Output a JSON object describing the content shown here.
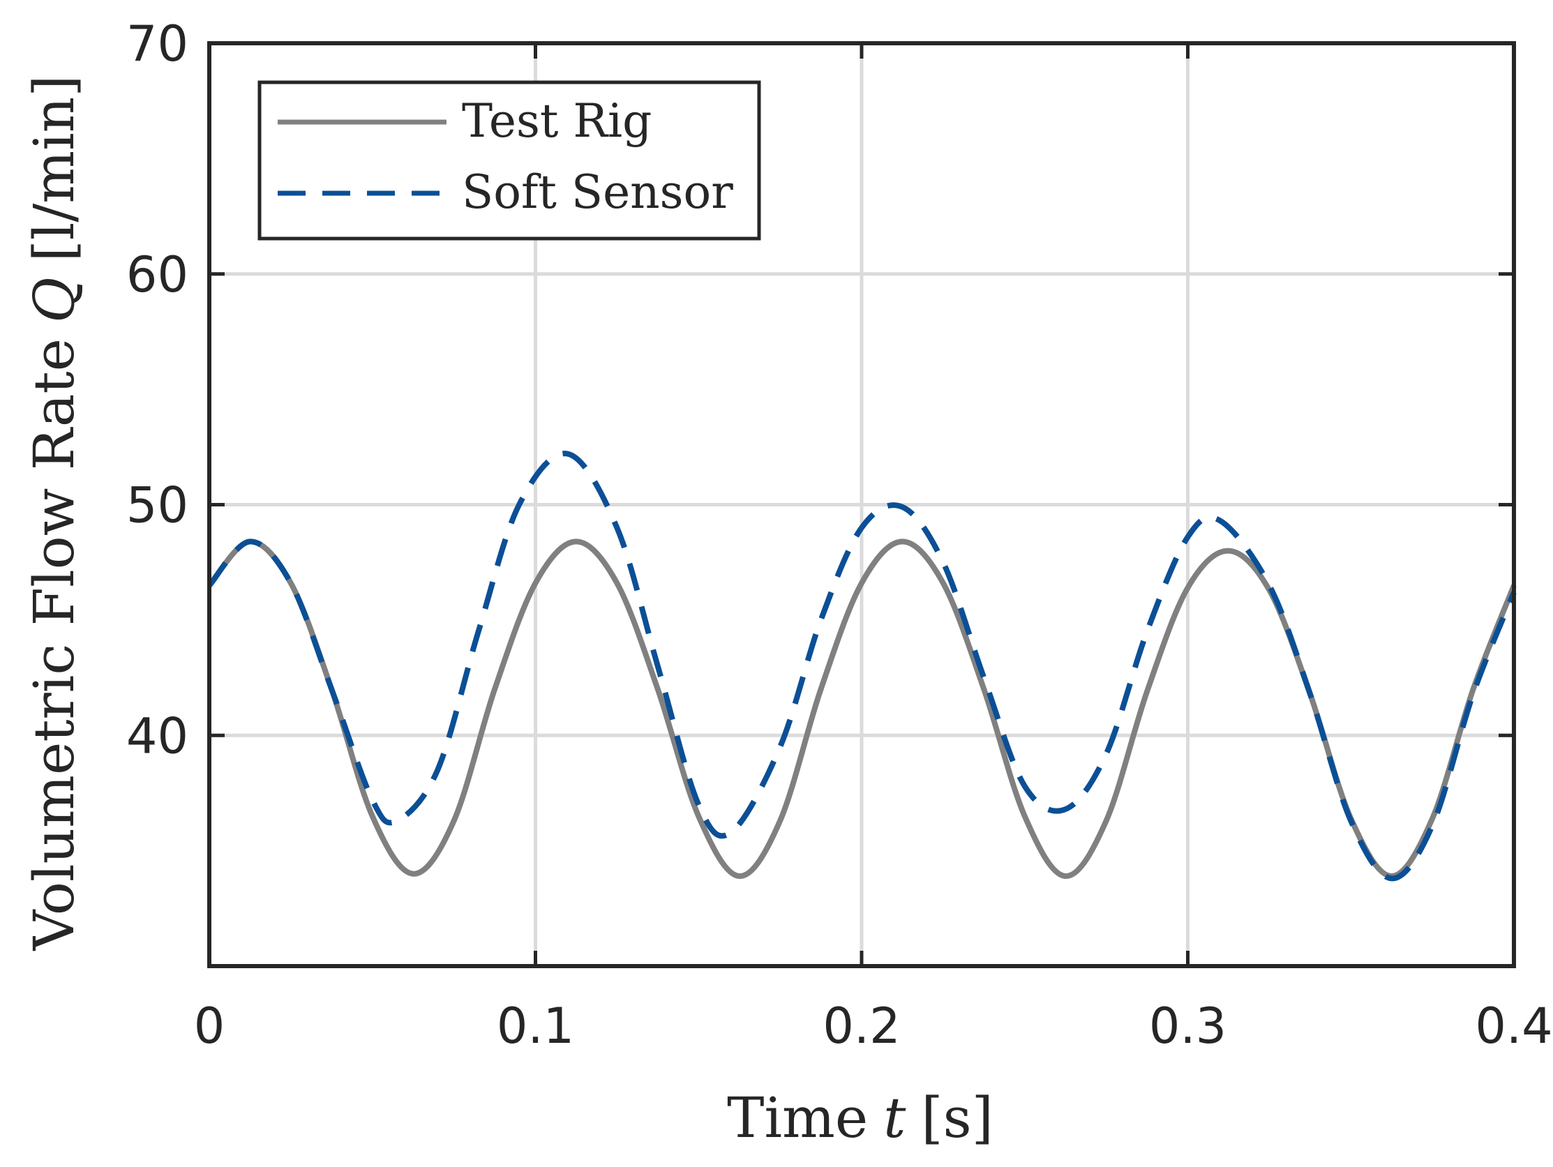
{
  "chart_data": {
    "type": "line",
    "xlabel_prefix": "Time",
    "xlabel_var": "t",
    "xlabel_unit": "[s]",
    "ylabel_prefix": "Volumetric Flow Rate",
    "ylabel_var": "Q",
    "ylabel_unit": "[l/min]",
    "xlim": [
      0,
      0.4
    ],
    "ylim": [
      30,
      70
    ],
    "xticks": [
      0,
      0.1,
      0.2,
      0.3,
      0.4
    ],
    "xtick_labels": [
      "0",
      "0.1",
      "0.2",
      "0.3",
      "0.4"
    ],
    "yticks": [
      40,
      50,
      60,
      70
    ],
    "ytick_labels": [
      "40",
      "50",
      "60",
      "70"
    ],
    "grid": true,
    "legend_position": "top-left",
    "series": [
      {
        "name": "Test Rig",
        "style": "solid",
        "color": "#808080",
        "x": [
          0,
          0.0125,
          0.025,
          0.0375,
          0.05,
          0.0625,
          0.075,
          0.0875,
          0.1,
          0.1125,
          0.125,
          0.1375,
          0.15,
          0.1625,
          0.175,
          0.1875,
          0.2,
          0.2125,
          0.225,
          0.2375,
          0.25,
          0.2625,
          0.275,
          0.2875,
          0.3,
          0.3125,
          0.325,
          0.3375,
          0.35,
          0.3625,
          0.375,
          0.3875,
          0.4
        ],
        "y": [
          46.5,
          48.4,
          46.6,
          42.0,
          36.5,
          34.0,
          36.3,
          42.0,
          46.6,
          48.4,
          46.6,
          42.0,
          36.5,
          33.9,
          36.3,
          42.0,
          46.6,
          48.4,
          46.6,
          42.0,
          36.5,
          33.9,
          36.3,
          41.9,
          46.4,
          48.0,
          46.3,
          41.8,
          36.4,
          33.9,
          36.4,
          42.0,
          46.5
        ]
      },
      {
        "name": "Soft Sensor",
        "style": "dashed",
        "color": "#0b4f96",
        "x": [
          0,
          0.0125,
          0.025,
          0.0375,
          0.05,
          0.0575,
          0.07,
          0.0825,
          0.095,
          0.11,
          0.125,
          0.1375,
          0.15,
          0.16,
          0.175,
          0.1875,
          0.2,
          0.2125,
          0.225,
          0.2375,
          0.25,
          0.2625,
          0.275,
          0.2875,
          0.3,
          0.31,
          0.325,
          0.3375,
          0.35,
          0.3625,
          0.375,
          0.3875,
          0.4
        ],
        "y": [
          46.5,
          48.4,
          46.6,
          42.0,
          37.2,
          36.3,
          38.5,
          44.5,
          50.0,
          52.2,
          49.0,
          43.0,
          37.0,
          35.8,
          39.5,
          45.0,
          49.0,
          49.9,
          47.5,
          42.5,
          37.8,
          36.8,
          39.2,
          44.5,
          48.6,
          49.3,
          46.5,
          41.8,
          36.3,
          33.8,
          36.1,
          41.8,
          46.2
        ]
      }
    ]
  }
}
